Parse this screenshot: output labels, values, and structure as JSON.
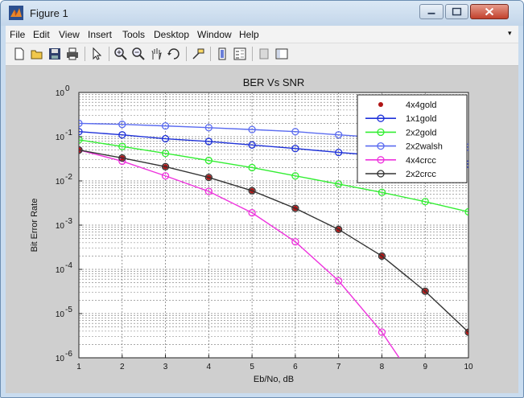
{
  "window": {
    "title": "Figure 1",
    "icon": "matlab-icon",
    "controls": [
      "minimize-icon",
      "maximize-icon",
      "close-icon"
    ]
  },
  "menubar": {
    "items": [
      {
        "label": "File"
      },
      {
        "label": "Edit"
      },
      {
        "label": "View"
      },
      {
        "label": "Insert"
      },
      {
        "label": "Tools"
      },
      {
        "label": "Desktop"
      },
      {
        "label": "Window"
      },
      {
        "label": "Help"
      }
    ],
    "overflow": "▾"
  },
  "toolbar": {
    "buttons": [
      "new-figure-icon",
      "open-file-icon",
      "save-figure-icon",
      "print-figure-icon",
      "edit-plot-arrow-icon",
      "zoom-in-icon",
      "zoom-out-icon",
      "pan-hand-icon",
      "rotate-3d-icon",
      "data-cursor-icon",
      "insert-colorbar-icon",
      "insert-legend-icon",
      "hide-plot-tools-icon",
      "show-plot-tools-icon"
    ]
  },
  "chart_data": {
    "type": "line",
    "title": "BER Vs SNR",
    "xlabel": "Eb/No, dB",
    "ylabel": "Bit Error Rate",
    "xlim": [
      1,
      10
    ],
    "ylim": [
      1e-06,
      1
    ],
    "yscale": "log",
    "grid": true,
    "legend_position": "top-right",
    "x_ticks": [
      "1",
      "2",
      "3",
      "4",
      "5",
      "6",
      "7",
      "8",
      "9",
      "10"
    ],
    "y_ticks": [
      {
        "base": "10",
        "exp": "0"
      },
      {
        "base": "10",
        "exp": "-1"
      },
      {
        "base": "10",
        "exp": "-2"
      },
      {
        "base": "10",
        "exp": "-3"
      },
      {
        "base": "10",
        "exp": "-4"
      },
      {
        "base": "10",
        "exp": "-5"
      },
      {
        "base": "10",
        "exp": "-6"
      }
    ],
    "series": [
      {
        "name": "4x4gold",
        "color": "#b01515",
        "marker": "dot",
        "line": "none",
        "x": [
          1,
          2,
          3,
          4,
          5,
          6,
          7,
          8,
          9,
          10
        ],
        "y": [
          0.05,
          0.033,
          0.021,
          0.012,
          0.006,
          0.0024,
          0.0008,
          0.0002,
          3.2e-05,
          3.8e-06
        ]
      },
      {
        "name": "1x1gold",
        "color": "#1f32d9",
        "marker": "circle",
        "line": "solid",
        "x": [
          1,
          2,
          3,
          4,
          5,
          6,
          7,
          8,
          9,
          10
        ],
        "y": [
          0.13,
          0.11,
          0.09,
          0.078,
          0.065,
          0.054,
          0.044,
          0.037,
          0.03,
          0.024
        ]
      },
      {
        "name": "2x2gold",
        "color": "#33ee33",
        "marker": "circle",
        "line": "solid",
        "x": [
          1,
          2,
          3,
          4,
          5,
          6,
          7,
          8,
          9,
          10
        ],
        "y": [
          0.085,
          0.06,
          0.042,
          0.029,
          0.02,
          0.013,
          0.0085,
          0.0055,
          0.0034,
          0.002
        ]
      },
      {
        "name": "2x2walsh",
        "color": "#5b6cf0",
        "marker": "circle",
        "line": "solid",
        "x": [
          1,
          2,
          3,
          4,
          5,
          6,
          7,
          8,
          9,
          10
        ],
        "y": [
          0.2,
          0.19,
          0.175,
          0.16,
          0.145,
          0.13,
          0.11,
          0.095,
          0.078,
          0.058
        ]
      },
      {
        "name": "4x4crcc",
        "color": "#ee33dd",
        "marker": "circle",
        "line": "solid",
        "x": [
          1,
          2,
          3,
          4,
          5,
          6,
          7,
          8,
          8.4
        ],
        "y": [
          0.05,
          0.028,
          0.013,
          0.0058,
          0.0019,
          0.00042,
          5.5e-05,
          3.8e-06,
          1e-06
        ]
      },
      {
        "name": "2x2crcc",
        "color": "#333333",
        "marker": "circle",
        "line": "solid",
        "x": [
          1,
          2,
          3,
          4,
          5,
          6,
          7,
          8,
          9,
          10
        ],
        "y": [
          0.05,
          0.033,
          0.021,
          0.012,
          0.006,
          0.0024,
          0.0008,
          0.0002,
          3.2e-05,
          3.8e-06
        ]
      }
    ]
  }
}
